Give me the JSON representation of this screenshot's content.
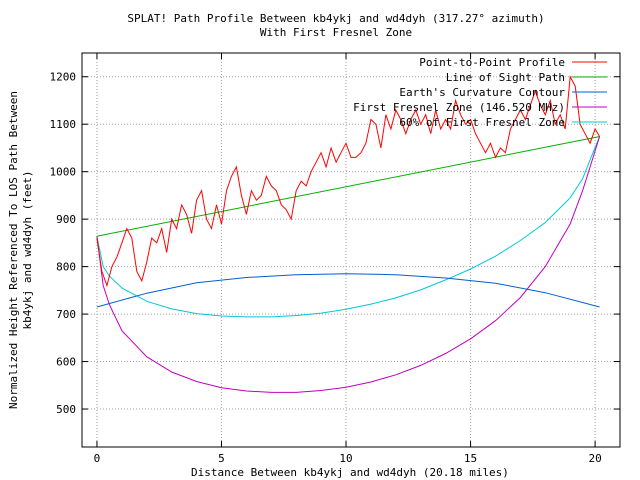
{
  "chart_data": {
    "type": "line",
    "title": "SPLAT! Path Profile Between kb4ykj and wd4dyh (317.27° azimuth)",
    "subtitle": "With First Fresnel Zone",
    "xlabel": "Distance Between kb4ykj and wd4dyh (20.18 miles)",
    "ylabel_line1": "Normalized Height Referenced To LOS Path Between",
    "ylabel_line2": "kb4ykj and wd4dyh (feet)",
    "xlim": [
      -0.6,
      21
    ],
    "ylim": [
      420,
      1250
    ],
    "xticks": [
      0,
      5,
      10,
      15,
      20
    ],
    "yticks": [
      500,
      600,
      700,
      800,
      900,
      1000,
      1100,
      1200
    ],
    "grid": true,
    "legend_position": "top-right",
    "series": [
      {
        "name": "Point-to-Point Profile",
        "color": "#ff0000",
        "x": [
          0,
          0.2,
          0.4,
          0.6,
          0.8,
          1.0,
          1.2,
          1.4,
          1.6,
          1.8,
          2.0,
          2.2,
          2.4,
          2.6,
          2.8,
          3.0,
          3.2,
          3.4,
          3.6,
          3.8,
          4.0,
          4.2,
          4.4,
          4.6,
          4.8,
          5.0,
          5.2,
          5.4,
          5.6,
          5.8,
          6.0,
          6.2,
          6.4,
          6.6,
          6.8,
          7.0,
          7.2,
          7.4,
          7.6,
          7.8,
          8.0,
          8.2,
          8.4,
          8.6,
          8.8,
          9.0,
          9.2,
          9.4,
          9.6,
          9.8,
          10.0,
          10.2,
          10.4,
          10.6,
          10.8,
          11.0,
          11.2,
          11.4,
          11.6,
          11.8,
          12.0,
          12.2,
          12.4,
          12.6,
          12.8,
          13.0,
          13.2,
          13.4,
          13.6,
          13.8,
          14.0,
          14.2,
          14.4,
          14.6,
          14.8,
          15.0,
          15.2,
          15.4,
          15.6,
          15.8,
          16.0,
          16.2,
          16.4,
          16.6,
          16.8,
          17.0,
          17.2,
          17.4,
          17.6,
          17.8,
          18.0,
          18.2,
          18.4,
          18.6,
          18.8,
          19.0,
          19.2,
          19.4,
          19.6,
          19.8,
          20.0,
          20.18
        ],
        "y": [
          860,
          790,
          760,
          800,
          820,
          850,
          880,
          860,
          790,
          770,
          810,
          860,
          850,
          880,
          830,
          900,
          880,
          930,
          910,
          870,
          940,
          960,
          900,
          880,
          930,
          890,
          960,
          990,
          1010,
          950,
          910,
          960,
          940,
          950,
          990,
          970,
          960,
          930,
          920,
          900,
          960,
          980,
          970,
          1000,
          1020,
          1040,
          1010,
          1050,
          1020,
          1040,
          1060,
          1030,
          1030,
          1040,
          1060,
          1110,
          1100,
          1050,
          1120,
          1090,
          1130,
          1110,
          1080,
          1110,
          1130,
          1100,
          1120,
          1080,
          1130,
          1090,
          1110,
          1090,
          1150,
          1120,
          1100,
          1110,
          1080,
          1060,
          1040,
          1060,
          1030,
          1050,
          1040,
          1090,
          1110,
          1130,
          1110,
          1140,
          1170,
          1140,
          1120,
          1150,
          1100,
          1120,
          1090,
          1200,
          1180,
          1100,
          1080,
          1060,
          1090,
          1074
        ]
      },
      {
        "name": "Line of Sight Path",
        "color": "#00b000",
        "x": [
          0,
          20.18
        ],
        "y": [
          864,
          1074
        ]
      },
      {
        "name": "Earth's Curvature Contour",
        "color": "#0060d0",
        "x": [
          0,
          2,
          4,
          6,
          8,
          10,
          12,
          14,
          16,
          18,
          20.18
        ],
        "y": [
          715,
          744,
          766,
          777,
          783,
          785,
          783,
          776,
          765,
          745,
          715
        ]
      },
      {
        "name": "First Fresnel Zone (146.520 MHz)",
        "color": "#c000c0",
        "x": [
          0,
          0.25,
          0.5,
          1,
          2,
          3,
          4,
          5,
          6,
          7,
          8,
          9,
          10,
          11,
          12,
          13,
          14,
          15,
          16,
          17,
          18,
          19,
          19.5,
          19.8,
          20.18
        ],
        "y": [
          864,
          760,
          720,
          665,
          610,
          578,
          558,
          545,
          538,
          535,
          535,
          539,
          546,
          557,
          572,
          592,
          617,
          648,
          686,
          735,
          800,
          890,
          960,
          1010,
          1074
        ]
      },
      {
        "name": "60% of First Fresnel Zone",
        "color": "#00c8d8",
        "x": [
          0,
          0.25,
          0.5,
          1,
          2,
          3,
          4,
          5,
          6,
          7,
          8,
          9,
          10,
          11,
          12,
          13,
          14,
          15,
          16,
          17,
          18,
          19,
          19.5,
          19.8,
          20.18
        ],
        "y": [
          864,
          800,
          780,
          755,
          727,
          711,
          701,
          696,
          694,
          694,
          697,
          702,
          710,
          721,
          734,
          751,
          772,
          795,
          822,
          855,
          893,
          945,
          985,
          1025,
          1074
        ]
      }
    ]
  }
}
